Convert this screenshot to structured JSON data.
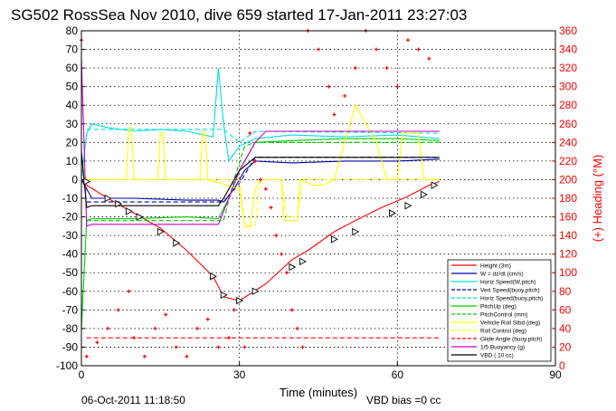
{
  "chart_data": {
    "type": "line",
    "title": "SG502 RossSea Nov 2010, dive 659 started 17-Jan-2011 23:27:03",
    "xlabel": "Time (minutes)",
    "ylabel_right": "(+) Heading (°M)",
    "xlim": [
      0,
      90
    ],
    "ylim": [
      -100,
      80
    ],
    "ylim_right": [
      0,
      360
    ],
    "xticks": [
      0,
      30,
      60,
      90
    ],
    "yticks": [
      -100,
      -90,
      -80,
      -70,
      -60,
      -50,
      -40,
      -30,
      -20,
      -10,
      0,
      10,
      20,
      30,
      40,
      50,
      60,
      70,
      80
    ],
    "yticks_right": [
      0,
      20,
      40,
      60,
      80,
      100,
      120,
      140,
      160,
      180,
      200,
      220,
      240,
      260,
      280,
      300,
      320,
      340,
      360
    ],
    "grid": true,
    "legend_position": "bottom-right",
    "colors": {
      "height": "#ff0000",
      "w": "#0000aa",
      "horz_speed": "#00e0e0",
      "pitch": "#00cc00",
      "roll": "#ffff00",
      "buoyancy": "#cc00cc",
      "vbd": "#000000",
      "heading": "#ff0000"
    },
    "legend": [
      {
        "label": "Height (3m)",
        "color": "#ff0000",
        "dash": "solid"
      },
      {
        "label": "W = dz/dt (cm/s)",
        "color": "#0000aa",
        "dash": "solid"
      },
      {
        "label": "Horiz Speed(W,pitch)",
        "color": "#00e0e0",
        "dash": "solid"
      },
      {
        "label": "Vert Speed(buoy,pitch)",
        "color": "#0000aa",
        "dash": "dashed"
      },
      {
        "label": "Horiz Speed(buoy,pitch)",
        "color": "#00e0e0",
        "dash": "dashed"
      },
      {
        "label": "PitchUp (deg)",
        "color": "#00cc00",
        "dash": "solid"
      },
      {
        "label": "PitchControl (mm)",
        "color": "#00cc00",
        "dash": "dashed"
      },
      {
        "label": "Vehicle Roll Stbd (deg)",
        "color": "#ffff00",
        "dash": "solid"
      },
      {
        "label": "Roll Control (deg)",
        "color": "#ffff00",
        "dash": "dashed"
      },
      {
        "label": "Glide Angle (buoy,pitch)",
        "color": "#ff0000",
        "dash": "dashed"
      },
      {
        "label": "1/5 Buoyancy (g)",
        "color": "#cc00cc",
        "dash": "solid"
      },
      {
        "label": "VBD ( 10 cc)",
        "color": "#000000",
        "dash": "solid"
      }
    ],
    "series": [
      {
        "name": "Height (3m)",
        "x": [
          0,
          1,
          5,
          10,
          15,
          20,
          25,
          27,
          30,
          35,
          40,
          43,
          48,
          52,
          57,
          62,
          66,
          68
        ],
        "y": [
          0,
          -3,
          -10,
          -18,
          -26,
          -38,
          -52,
          -63,
          -65,
          -56,
          -43,
          -38,
          -28,
          -22,
          -15,
          -9,
          -3,
          -1
        ]
      },
      {
        "name": "W = dz/dt (cm/s)",
        "x": [
          0,
          1,
          2,
          10,
          20,
          26,
          27,
          29,
          31,
          33,
          40,
          50,
          60,
          68
        ],
        "y": [
          0,
          -5,
          -10,
          -10,
          -11,
          -11,
          -12,
          -5,
          5,
          10,
          9,
          10,
          10,
          11
        ]
      },
      {
        "name": "Horiz Speed(W,pitch)",
        "x": [
          0,
          1,
          2,
          5,
          10,
          15,
          20,
          25,
          26,
          27,
          28,
          30,
          33,
          40,
          50,
          60,
          68
        ],
        "y": [
          0,
          25,
          30,
          28,
          26,
          27,
          26,
          23,
          60,
          30,
          10,
          18,
          22,
          24,
          23,
          24,
          22
        ]
      },
      {
        "name": "Vert Speed(buoy,pitch)",
        "x": [
          1,
          27,
          30,
          33,
          68
        ],
        "y": [
          -12,
          -12,
          -2,
          12,
          12
        ]
      },
      {
        "name": "Horiz Speed(buoy,pitch)",
        "x": [
          1,
          27,
          30,
          33,
          68
        ],
        "y": [
          27,
          27,
          20,
          26,
          25
        ]
      },
      {
        "name": "PitchUp (deg)",
        "x": [
          0,
          1,
          2,
          10,
          20,
          26,
          28,
          30,
          33,
          40,
          50,
          60,
          68
        ],
        "y": [
          -80,
          -22,
          -21,
          -21,
          -20,
          -21,
          -10,
          5,
          20,
          21,
          22,
          22,
          21
        ]
      },
      {
        "name": "PitchControl (mm)",
        "x": [
          1,
          27,
          29,
          31,
          33,
          68
        ],
        "y": [
          -22,
          -22,
          0,
          18,
          20,
          20
        ]
      },
      {
        "name": "Vehicle Roll Stbd (deg)",
        "x": [
          0,
          1,
          2,
          8,
          8.5,
          9,
          9.5,
          10,
          14,
          14.5,
          15,
          15.5,
          16,
          22,
          22.5,
          23,
          23.5,
          24,
          30,
          31,
          32,
          33,
          34,
          38,
          38.5,
          41,
          41.5,
          44,
          46,
          48,
          50,
          52,
          56,
          58,
          60,
          61,
          64,
          65,
          66,
          68
        ],
        "y": [
          10,
          0,
          0,
          0,
          0,
          28,
          28,
          0,
          0,
          0,
          25,
          25,
          0,
          0,
          0,
          26,
          26,
          0,
          -5,
          -25,
          -25,
          -5,
          0,
          0,
          -22,
          -22,
          0,
          -3,
          -3,
          0,
          20,
          40,
          20,
          0,
          0,
          25,
          25,
          0,
          0,
          0
        ]
      },
      {
        "name": "Roll Control (deg)",
        "x": [
          1,
          30,
          31,
          33,
          34,
          38,
          39,
          41,
          42,
          68
        ],
        "y": [
          0,
          0,
          -25,
          -25,
          0,
          0,
          -20,
          -20,
          0,
          0
        ]
      },
      {
        "name": "Glide Angle (buoy,pitch)",
        "x": [
          1,
          68
        ],
        "y": [
          -85,
          -85
        ]
      },
      {
        "name": "1/5 Buoyancy (g)",
        "x": [
          0,
          1,
          2,
          26,
          28,
          30,
          33,
          35,
          68
        ],
        "y": [
          65,
          -25,
          -24,
          -24,
          -10,
          5,
          20,
          26,
          26
        ]
      },
      {
        "name": "VBD ( 10 cc)",
        "x": [
          0,
          1,
          2,
          26,
          27,
          30,
          33,
          68
        ],
        "y": [
          15,
          -15,
          -14,
          -14,
          -10,
          5,
          12,
          12
        ]
      },
      {
        "name": "(+) Heading (°M)",
        "axis": "right",
        "x": [
          0,
          1,
          3,
          5,
          7,
          9,
          10,
          12,
          14,
          16,
          18,
          20,
          22,
          24,
          26,
          28,
          29,
          30,
          31,
          32,
          33,
          34,
          35,
          36,
          37,
          38,
          39,
          40,
          41,
          42,
          43,
          45,
          47,
          48,
          50,
          52,
          54,
          56,
          58,
          60,
          62,
          64,
          66
        ],
        "y": [
          350,
          10,
          25,
          40,
          60,
          80,
          30,
          10,
          40,
          55,
          20,
          10,
          40,
          50,
          20,
          30,
          60,
          70,
          20,
          250,
          220,
          200,
          190,
          170,
          140,
          120,
          100,
          60,
          40,
          20,
          360,
          340,
          300,
          270,
          290,
          320,
          360,
          340,
          320,
          300,
          350,
          340,
          330
        ]
      }
    ],
    "markers": {
      "label": "triangle markers along Height trace",
      "x": [
        1,
        5,
        7,
        9,
        11,
        15,
        18,
        25,
        27,
        30,
        33,
        40,
        42,
        48,
        52,
        59,
        62,
        65,
        67
      ],
      "y": [
        -1,
        -10,
        -13,
        -17,
        -20,
        -28,
        -34,
        -52,
        -62,
        -65,
        -60,
        -47,
        -44,
        -32,
        -28,
        -18,
        -14,
        -8,
        -3
      ]
    }
  },
  "footer": {
    "timestamp": "06-Oct-2011 11:18:50",
    "vbd_bias": "VBD bias =0 cc"
  }
}
